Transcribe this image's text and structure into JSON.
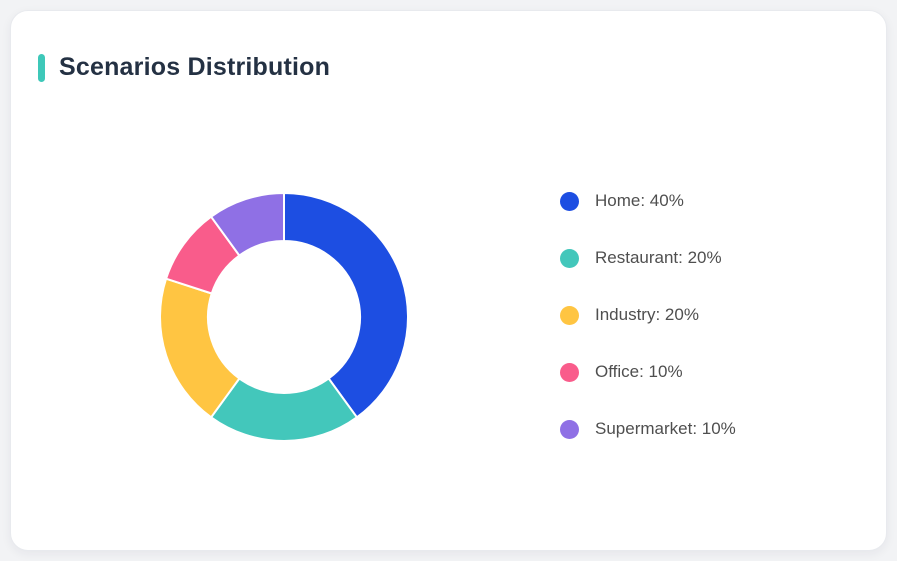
{
  "page": {
    "background": "#F2F3F5"
  },
  "card": {
    "title": "Scenarios Distribution",
    "accent_color": "#3EC8B9"
  },
  "chart_data": {
    "type": "pie",
    "subtype": "donut",
    "title": "Scenarios Distribution",
    "start_angle_deg": 0,
    "direction": "clockwise",
    "inner_radius_ratio": 0.61,
    "categories": [
      "Home",
      "Restaurant",
      "Industry",
      "Office",
      "Supermarket"
    ],
    "values": [
      40,
      20,
      20,
      10,
      10
    ],
    "unit": "%",
    "colors": [
      "#1D4EE2",
      "#43C7BB",
      "#FFC542",
      "#F95C8B",
      "#8F70E5"
    ],
    "legend_position": "right",
    "legend": [
      {
        "label": "Home: 40%",
        "color": "#1D4EE2"
      },
      {
        "label": "Restaurant: 20%",
        "color": "#43C7BB"
      },
      {
        "label": "Industry: 20%",
        "color": "#FFC542"
      },
      {
        "label": "Office: 10%",
        "color": "#F95C8B"
      },
      {
        "label": "Supermarket: 10%",
        "color": "#8F70E5"
      }
    ]
  }
}
